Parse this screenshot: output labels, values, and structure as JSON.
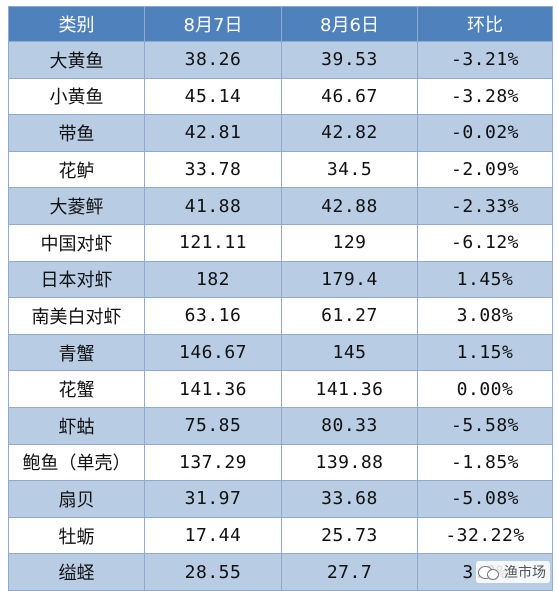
{
  "table": {
    "headers": [
      "类别",
      "8月7日",
      "8月6日",
      "环比"
    ],
    "rows": [
      {
        "name": "大黄鱼",
        "aug7": "38.26",
        "aug6": "39.53",
        "change": "-3.21%"
      },
      {
        "name": "小黄鱼",
        "aug7": "45.14",
        "aug6": "46.67",
        "change": "-3.28%"
      },
      {
        "name": "带鱼",
        "aug7": "42.81",
        "aug6": "42.82",
        "change": "-0.02%"
      },
      {
        "name": "花鲈",
        "aug7": "33.78",
        "aug6": "34.5",
        "change": "-2.09%"
      },
      {
        "name": "大菱鲆",
        "aug7": "41.88",
        "aug6": "42.88",
        "change": "-2.33%"
      },
      {
        "name": "中国对虾",
        "aug7": "121.11",
        "aug6": "129",
        "change": "-6.12%"
      },
      {
        "name": "日本对虾",
        "aug7": "182",
        "aug6": "179.4",
        "change": "1.45%"
      },
      {
        "name": "南美白对虾",
        "aug7": "63.16",
        "aug6": "61.27",
        "change": "3.08%"
      },
      {
        "name": "青蟹",
        "aug7": "146.67",
        "aug6": "145",
        "change": "1.15%"
      },
      {
        "name": "花蟹",
        "aug7": "141.36",
        "aug6": "141.36",
        "change": "0.00%"
      },
      {
        "name": "虾蛄",
        "aug7": "75.85",
        "aug6": "80.33",
        "change": "-5.58%"
      },
      {
        "name": "鲍鱼（单壳）",
        "aug7": "137.29",
        "aug6": "139.88",
        "change": "-1.85%"
      },
      {
        "name": "扇贝",
        "aug7": "31.97",
        "aug6": "33.68",
        "change": "-5.08%"
      },
      {
        "name": "牡蛎",
        "aug7": "17.44",
        "aug6": "25.73",
        "change": "-32.22%"
      },
      {
        "name": "缢蛏",
        "aug7": "28.55",
        "aug6": "27.7",
        "change": "3.?%"
      }
    ]
  },
  "watermark": {
    "text": "渔市场",
    "icon": "wechat-icon"
  },
  "colors": {
    "header_bg": "#4f81bd",
    "band_blue": "#b8cce4",
    "band_white": "#ffffff",
    "border": "#8fa9cf"
  }
}
